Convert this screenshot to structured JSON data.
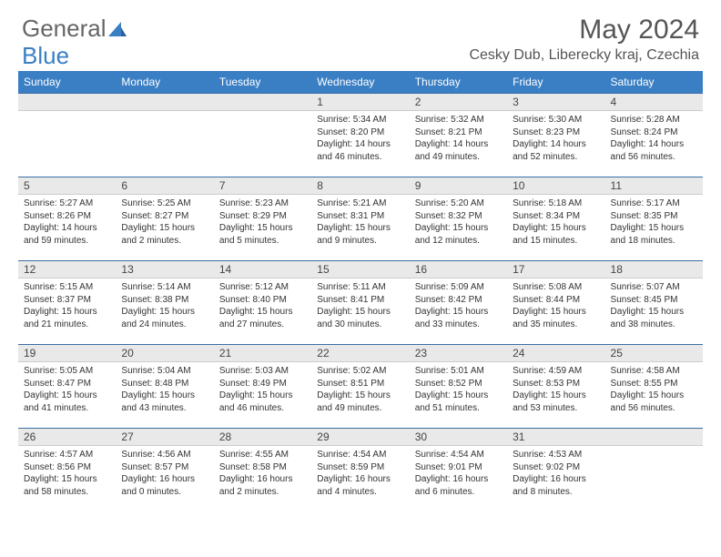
{
  "logo": {
    "general": "General",
    "blue": "Blue"
  },
  "title": {
    "month_year": "May 2024",
    "location": "Cesky Dub, Liberecky kraj, Czechia"
  },
  "colors": {
    "header_bg": "#3a7fc4",
    "header_text": "#ffffff",
    "daynum_bg": "#e9e9e9",
    "border_top": "#3a6fa4",
    "text": "#333333"
  },
  "day_headers": [
    "Sunday",
    "Monday",
    "Tuesday",
    "Wednesday",
    "Thursday",
    "Friday",
    "Saturday"
  ],
  "weeks": [
    [
      {
        "empty": true
      },
      {
        "empty": true
      },
      {
        "empty": true
      },
      {
        "n": "1",
        "sr": "5:34 AM",
        "ss": "8:20 PM",
        "dl": "14 hours and 46 minutes."
      },
      {
        "n": "2",
        "sr": "5:32 AM",
        "ss": "8:21 PM",
        "dl": "14 hours and 49 minutes."
      },
      {
        "n": "3",
        "sr": "5:30 AM",
        "ss": "8:23 PM",
        "dl": "14 hours and 52 minutes."
      },
      {
        "n": "4",
        "sr": "5:28 AM",
        "ss": "8:24 PM",
        "dl": "14 hours and 56 minutes."
      }
    ],
    [
      {
        "n": "5",
        "sr": "5:27 AM",
        "ss": "8:26 PM",
        "dl": "14 hours and 59 minutes."
      },
      {
        "n": "6",
        "sr": "5:25 AM",
        "ss": "8:27 PM",
        "dl": "15 hours and 2 minutes."
      },
      {
        "n": "7",
        "sr": "5:23 AM",
        "ss": "8:29 PM",
        "dl": "15 hours and 5 minutes."
      },
      {
        "n": "8",
        "sr": "5:21 AM",
        "ss": "8:31 PM",
        "dl": "15 hours and 9 minutes."
      },
      {
        "n": "9",
        "sr": "5:20 AM",
        "ss": "8:32 PM",
        "dl": "15 hours and 12 minutes."
      },
      {
        "n": "10",
        "sr": "5:18 AM",
        "ss": "8:34 PM",
        "dl": "15 hours and 15 minutes."
      },
      {
        "n": "11",
        "sr": "5:17 AM",
        "ss": "8:35 PM",
        "dl": "15 hours and 18 minutes."
      }
    ],
    [
      {
        "n": "12",
        "sr": "5:15 AM",
        "ss": "8:37 PM",
        "dl": "15 hours and 21 minutes."
      },
      {
        "n": "13",
        "sr": "5:14 AM",
        "ss": "8:38 PM",
        "dl": "15 hours and 24 minutes."
      },
      {
        "n": "14",
        "sr": "5:12 AM",
        "ss": "8:40 PM",
        "dl": "15 hours and 27 minutes."
      },
      {
        "n": "15",
        "sr": "5:11 AM",
        "ss": "8:41 PM",
        "dl": "15 hours and 30 minutes."
      },
      {
        "n": "16",
        "sr": "5:09 AM",
        "ss": "8:42 PM",
        "dl": "15 hours and 33 minutes."
      },
      {
        "n": "17",
        "sr": "5:08 AM",
        "ss": "8:44 PM",
        "dl": "15 hours and 35 minutes."
      },
      {
        "n": "18",
        "sr": "5:07 AM",
        "ss": "8:45 PM",
        "dl": "15 hours and 38 minutes."
      }
    ],
    [
      {
        "n": "19",
        "sr": "5:05 AM",
        "ss": "8:47 PM",
        "dl": "15 hours and 41 minutes."
      },
      {
        "n": "20",
        "sr": "5:04 AM",
        "ss": "8:48 PM",
        "dl": "15 hours and 43 minutes."
      },
      {
        "n": "21",
        "sr": "5:03 AM",
        "ss": "8:49 PM",
        "dl": "15 hours and 46 minutes."
      },
      {
        "n": "22",
        "sr": "5:02 AM",
        "ss": "8:51 PM",
        "dl": "15 hours and 49 minutes."
      },
      {
        "n": "23",
        "sr": "5:01 AM",
        "ss": "8:52 PM",
        "dl": "15 hours and 51 minutes."
      },
      {
        "n": "24",
        "sr": "4:59 AM",
        "ss": "8:53 PM",
        "dl": "15 hours and 53 minutes."
      },
      {
        "n": "25",
        "sr": "4:58 AM",
        "ss": "8:55 PM",
        "dl": "15 hours and 56 minutes."
      }
    ],
    [
      {
        "n": "26",
        "sr": "4:57 AM",
        "ss": "8:56 PM",
        "dl": "15 hours and 58 minutes."
      },
      {
        "n": "27",
        "sr": "4:56 AM",
        "ss": "8:57 PM",
        "dl": "16 hours and 0 minutes."
      },
      {
        "n": "28",
        "sr": "4:55 AM",
        "ss": "8:58 PM",
        "dl": "16 hours and 2 minutes."
      },
      {
        "n": "29",
        "sr": "4:54 AM",
        "ss": "8:59 PM",
        "dl": "16 hours and 4 minutes."
      },
      {
        "n": "30",
        "sr": "4:54 AM",
        "ss": "9:01 PM",
        "dl": "16 hours and 6 minutes."
      },
      {
        "n": "31",
        "sr": "4:53 AM",
        "ss": "9:02 PM",
        "dl": "16 hours and 8 minutes."
      },
      {
        "empty": true
      }
    ]
  ],
  "labels": {
    "sunrise": "Sunrise: ",
    "sunset": "Sunset: ",
    "daylight": "Daylight: "
  }
}
